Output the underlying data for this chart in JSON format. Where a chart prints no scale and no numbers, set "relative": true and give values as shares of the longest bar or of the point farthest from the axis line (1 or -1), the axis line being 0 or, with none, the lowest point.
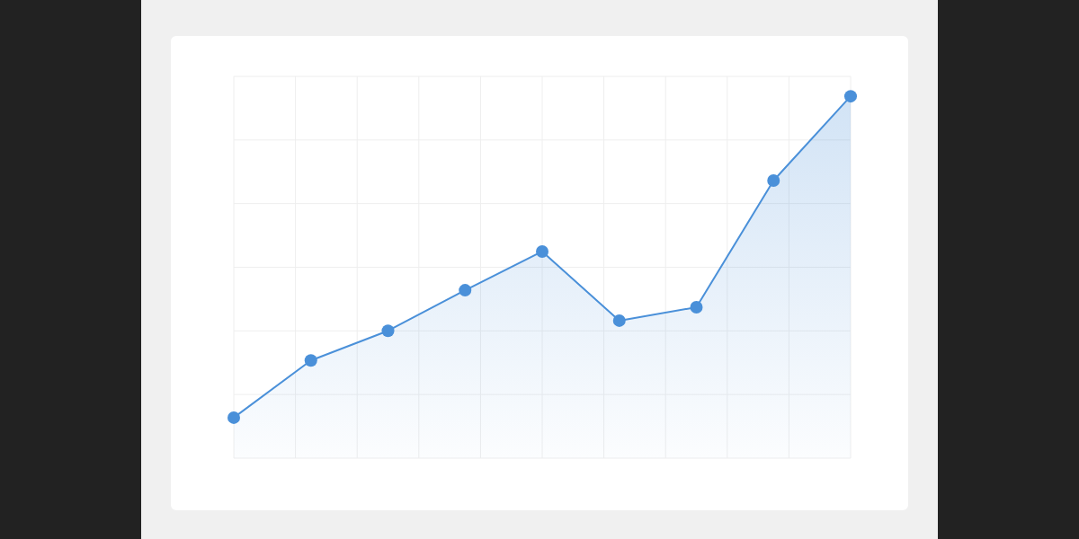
{
  "chart_data": {
    "type": "area",
    "relative": true,
    "categories": [
      null,
      null,
      null,
      null,
      null,
      null,
      null,
      null,
      null
    ],
    "grid": true,
    "marker": "circle",
    "series": [
      {
        "color": "#4a90d9",
        "values": [
          0.112,
          0.27,
          0.352,
          0.464,
          0.571,
          0.38,
          0.417,
          0.767,
          1
        ]
      }
    ]
  }
}
